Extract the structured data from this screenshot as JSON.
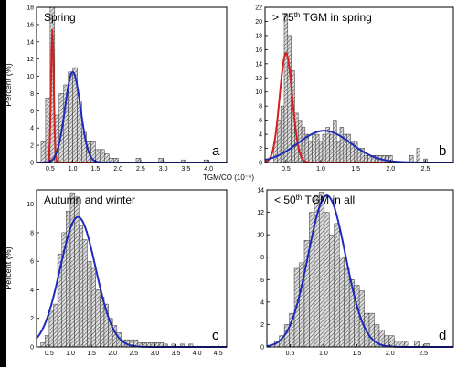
{
  "figure": {
    "shared_xlabel": "TGM/CO (10⁻⁶)"
  },
  "chart_data": [
    {
      "type": "bar",
      "panel_label": "a",
      "title": "Spring",
      "ylabel": "Percent (%)",
      "xlabel": "",
      "xlim": [
        0.2,
        4.4
      ],
      "ylim": [
        0,
        18
      ],
      "xticks": [
        "0.5",
        "1.0",
        "1.5",
        "2.0",
        "2.5",
        "3.0",
        "3.5",
        "4.0"
      ],
      "yticks": [
        "0",
        "2",
        "4",
        "6",
        "8",
        "10",
        "12",
        "14",
        "16",
        "18"
      ],
      "bin_width": 0.1,
      "bins": [
        0.35,
        0.45,
        0.55,
        0.65,
        0.75,
        0.85,
        0.95,
        1.05,
        1.15,
        1.25,
        1.35,
        1.45,
        1.55,
        1.65,
        1.75,
        1.85,
        1.95,
        2.45,
        2.95,
        3.45,
        3.95
      ],
      "values": [
        2.5,
        7.5,
        18,
        5.5,
        8,
        9,
        10.5,
        11,
        7,
        3.5,
        2.5,
        2.5,
        1.5,
        1.5,
        1,
        0.5,
        0.5,
        0.5,
        0.5,
        0.3,
        0.3
      ],
      "fit_curves": [
        {
          "color": "#d42020",
          "mean": 0.55,
          "sd": 0.03,
          "peak": 15.5
        },
        {
          "color": "#1f2bb8",
          "mean": 1.0,
          "sd": 0.17,
          "peak": 10.5
        }
      ],
      "grid": false
    },
    {
      "type": "bar",
      "panel_label": "b",
      "title": "> 75th TGM in spring",
      "ylabel": "",
      "xlabel": "",
      "xlim": [
        0.2,
        2.9
      ],
      "ylim": [
        0,
        22
      ],
      "xticks": [
        "0.5",
        "1.0",
        "1.5",
        "2.0",
        "2.5"
      ],
      "yticks": [
        "0",
        "2",
        "4",
        "6",
        "8",
        "10",
        "12",
        "14",
        "16",
        "18",
        "20",
        "22"
      ],
      "bin_width": 0.05,
      "bins": [
        0.35,
        0.4,
        0.45,
        0.5,
        0.55,
        0.6,
        0.65,
        0.7,
        0.75,
        0.8,
        0.85,
        0.9,
        0.95,
        1.0,
        1.05,
        1.1,
        1.15,
        1.2,
        1.25,
        1.3,
        1.35,
        1.4,
        1.45,
        1.5,
        1.55,
        1.6,
        1.65,
        1.7,
        1.75,
        1.8,
        1.85,
        1.9,
        1.95,
        2.0,
        2.3,
        2.4,
        2.5
      ],
      "values": [
        3,
        6,
        8,
        21,
        18,
        13,
        7,
        6,
        5,
        4,
        3,
        4,
        4,
        3,
        4,
        5,
        4,
        6,
        3,
        5,
        4,
        4,
        3,
        3,
        2,
        2,
        1,
        1,
        1,
        1,
        1,
        1,
        1,
        1,
        1,
        2,
        0.5
      ],
      "fit_curves": [
        {
          "color": "#d42020",
          "mean": 0.5,
          "sd": 0.09,
          "peak": 15.5
        },
        {
          "color": "#1f2bb8",
          "mean": 1.05,
          "sd": 0.38,
          "peak": 4.5
        }
      ],
      "grid": false
    },
    {
      "type": "bar",
      "panel_label": "c",
      "title": "Autumn and winter",
      "ylabel": "Percent (%)",
      "xlabel": "",
      "xlim": [
        0.2,
        4.7
      ],
      "ylim": [
        0,
        11
      ],
      "xticks": [
        "0.5",
        "1.0",
        "1.5",
        "2.0",
        "2.5",
        "3.0",
        "3.5",
        "4.0",
        "4.5"
      ],
      "yticks": [
        "0",
        "2",
        "4",
        "6",
        "8",
        "10"
      ],
      "bin_width": 0.1,
      "bins": [
        0.35,
        0.45,
        0.55,
        0.65,
        0.75,
        0.85,
        0.95,
        1.05,
        1.15,
        1.25,
        1.35,
        1.45,
        1.55,
        1.65,
        1.75,
        1.85,
        1.95,
        2.05,
        2.15,
        2.25,
        2.35,
        2.45,
        2.55,
        2.65,
        2.75,
        2.85,
        2.95,
        3.05,
        3.15,
        3.25,
        3.45,
        3.65,
        3.85
      ],
      "values": [
        0.3,
        0.8,
        2.5,
        3,
        6.5,
        8,
        9.5,
        10.8,
        10.5,
        8.5,
        7.5,
        6,
        5.5,
        4,
        3.5,
        3,
        2,
        1.5,
        1,
        0.5,
        0.5,
        0.5,
        0.5,
        0.3,
        0.3,
        0.3,
        0.3,
        0.3,
        0.3,
        0.2,
        0.2,
        0.2,
        0.2
      ],
      "fit_curves": [
        {
          "color": "#1f2bb8",
          "mean": 1.18,
          "sd": 0.42,
          "peak": 9.1
        }
      ],
      "grid": false
    },
    {
      "type": "bar",
      "panel_label": "d",
      "title": "< 50th TGM in all",
      "ylabel": "",
      "xlabel": "",
      "xlim": [
        0.15,
        2.95
      ],
      "ylim": [
        0,
        14
      ],
      "xticks": [
        "0.5",
        "1.0",
        "1.5",
        "2.0",
        "2.5"
      ],
      "yticks": [
        "0",
        "2",
        "4",
        "6",
        "8",
        "10",
        "12",
        "14"
      ],
      "bin_width": 0.075,
      "bins": [
        0.3,
        0.375,
        0.45,
        0.525,
        0.6,
        0.675,
        0.75,
        0.825,
        0.9,
        0.975,
        1.05,
        1.125,
        1.2,
        1.275,
        1.35,
        1.425,
        1.5,
        1.575,
        1.65,
        1.725,
        1.8,
        1.875,
        1.95,
        2.025,
        2.1,
        2.175,
        2.25,
        2.4,
        2.55
      ],
      "values": [
        0.5,
        1,
        2,
        3,
        7,
        7.5,
        9.5,
        12,
        13.5,
        13.8,
        12,
        10,
        11,
        8,
        7,
        6,
        5.5,
        5,
        3,
        3,
        2,
        1.5,
        1,
        1,
        0.5,
        0.5,
        0.5,
        0.5,
        0.3
      ],
      "fit_curves": [
        {
          "color": "#1f2bb8",
          "mean": 1.05,
          "sd": 0.28,
          "peak": 13.5
        }
      ],
      "grid": false
    }
  ]
}
